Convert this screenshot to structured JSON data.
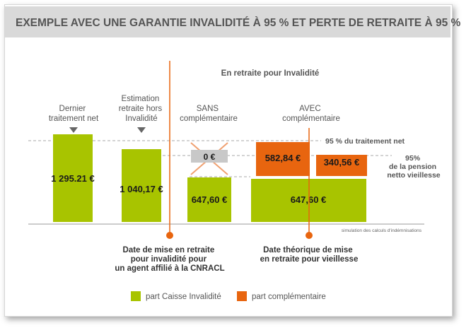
{
  "header": {
    "title": "EXEMPLE AVEC UNE GARANTIE INVALIDITÉ À 95 % ET PERTE DE RETRAITE À 95 %"
  },
  "colors": {
    "green": "#a8c400",
    "orange": "#e8650f",
    "gray_bar": "#c8c8c8",
    "header_bg": "#d9d9d9",
    "cross": "#f0a070"
  },
  "chart_data": {
    "type": "bar",
    "section_title": "En retraite pour Invalidité",
    "groups": [
      {
        "label": [
          "Dernier",
          "traitement net"
        ],
        "arrow": true,
        "segments": [
          {
            "series": "part Caisse Invalidité",
            "value": 1295.21,
            "label": "1 295.21 €"
          }
        ]
      },
      {
        "label": [
          "Estimation",
          "retraite hors",
          "Invalidité"
        ],
        "arrow": true,
        "segments": [
          {
            "series": "part Caisse Invalidité",
            "value": 1040.17,
            "label": "1 040,17 €"
          }
        ]
      },
      {
        "label": [
          "SANS",
          "complémentaire"
        ],
        "arrow": false,
        "segments": [
          {
            "series": "part Caisse Invalidité",
            "value": 647.6,
            "label": "647,60 €"
          },
          {
            "series": "none",
            "value": 0,
            "label": "0 €",
            "crossed": true
          }
        ]
      },
      {
        "label": [
          "AVEC",
          "complémentaire"
        ],
        "arrow": false,
        "segments": [
          {
            "series": "part Caisse Invalidité",
            "value": 647.6,
            "label": "647,60 €"
          },
          {
            "series": "part complémentaire",
            "value": 582.84,
            "label": "582,84 €"
          },
          {
            "series": "part complémentaire",
            "value": 340.56,
            "label": "340,56 €"
          }
        ]
      }
    ],
    "reference_lines": [
      {
        "value": 1230.45,
        "label": "95 % du traitement net"
      },
      {
        "value": 988.16,
        "label": [
          "95%",
          "de la pension",
          "netto vieillesse"
        ]
      }
    ],
    "markers": [
      {
        "label": [
          "Date de mise en retraite",
          "pour invalidité pour",
          "un agent affilié à la CNRACL"
        ]
      },
      {
        "label": [
          "Date théorique de mise",
          "en retraite pour vieillesse"
        ]
      }
    ],
    "note": "simulation des calculs d'indémnisations",
    "legend": [
      {
        "name": "part Caisse Invalidité",
        "color": "#a8c400"
      },
      {
        "name": "part complémentaire",
        "color": "#e8650f"
      }
    ],
    "legend_position": "bottom"
  }
}
